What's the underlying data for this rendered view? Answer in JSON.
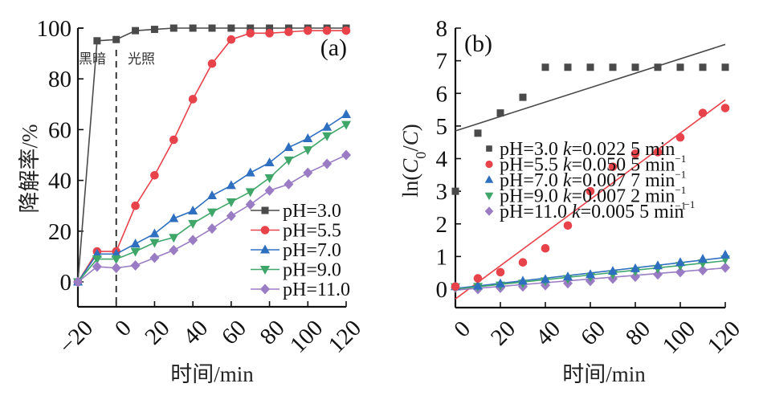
{
  "chart_data": [
    {
      "type": "line",
      "panel_label": "(a)",
      "title": "",
      "xlabel": "时间/min",
      "ylabel": "降解率/%",
      "xlim": [
        -20,
        120
      ],
      "ylim": [
        -7,
        100
      ],
      "x_ticks": [
        "-20",
        "0",
        "20",
        "40",
        "60",
        "80",
        "100",
        "120"
      ],
      "y_ticks": [
        "0",
        "20",
        "40",
        "60",
        "80",
        "100"
      ],
      "grid": false,
      "legend_position": "bottom-right",
      "annotations": [
        {
          "text": "黑暗",
          "region": "dark"
        },
        {
          "text": "光照",
          "region": "light"
        }
      ],
      "divider_x": 0,
      "x": [
        -20,
        -10,
        0,
        10,
        20,
        30,
        40,
        50,
        60,
        70,
        80,
        90,
        100,
        110,
        120
      ],
      "series": [
        {
          "name": "pH=3.0",
          "marker": "square",
          "color": "#4a4a4a",
          "values": [
            0,
            95,
            95.5,
            99,
            99.5,
            100,
            100,
            100,
            100,
            100,
            100,
            100,
            100,
            100,
            100
          ]
        },
        {
          "name": "pH=5.5",
          "marker": "circle",
          "color": "#e8424a",
          "values": [
            0,
            12,
            12,
            30,
            42,
            56,
            72,
            86,
            95.5,
            98,
            98,
            98.5,
            99,
            99,
            99
          ]
        },
        {
          "name": "pH=7.0",
          "marker": "triangle-up",
          "color": "#2f6fbf",
          "values": [
            0,
            11,
            11,
            15,
            19,
            25,
            28,
            34,
            38,
            43,
            47,
            53,
            56.5,
            61,
            66
          ]
        },
        {
          "name": "pH=9.0",
          "marker": "triangle-down",
          "color": "#3fa66a",
          "values": [
            0,
            9,
            9,
            12,
            15.5,
            17.5,
            23,
            27.5,
            31.5,
            35.5,
            41,
            48,
            52,
            57.5,
            62
          ]
        },
        {
          "name": "pH=11.0",
          "marker": "diamond",
          "color": "#9a7cc4",
          "values": [
            0,
            6,
            5.5,
            6.5,
            9.5,
            12.5,
            16.5,
            21,
            26,
            30.5,
            36,
            38.5,
            43,
            46.5,
            50
          ]
        }
      ]
    },
    {
      "type": "scatter",
      "panel_label": "(b)",
      "title": "",
      "xlabel": "时间/min",
      "ylabel": "ln(C0/C)",
      "ylabel_parts": {
        "prefix": "ln(",
        "c0": "C",
        "sub": "0",
        "slash": "/",
        "c": "C",
        "suffix": ")"
      },
      "xlim": [
        0,
        120
      ],
      "ylim": [
        -0.6,
        8
      ],
      "x_ticks": [
        "0",
        "20",
        "40",
        "60",
        "80",
        "100",
        "120"
      ],
      "y_ticks": [
        "0",
        "1",
        "2",
        "3",
        "4",
        "5",
        "6",
        "7",
        "8"
      ],
      "grid": false,
      "legend_position": "center",
      "x": [
        0,
        10,
        20,
        30,
        40,
        50,
        60,
        70,
        80,
        90,
        100,
        110,
        120
      ],
      "series": [
        {
          "name": "pH=3.0",
          "k": "0.022 5",
          "unit": "min",
          "unit_exp": "−1",
          "marker": "square",
          "color": "#4a4a4a",
          "values": [
            3.0,
            4.78,
            5.4,
            5.88,
            6.8,
            6.8,
            6.8,
            6.8,
            6.8,
            6.8,
            6.8,
            6.8,
            6.8
          ],
          "fit": [
            4.85,
            7.5
          ]
        },
        {
          "name": "pH=5.5",
          "k": "0.050 5",
          "unit": "min",
          "unit_exp": "−1",
          "marker": "circle",
          "color": "#e8424a",
          "values": [
            0.08,
            0.33,
            0.52,
            0.82,
            1.25,
            1.95,
            3.0,
            3.75,
            4.15,
            4.2,
            4.65,
            5.4,
            5.55
          ],
          "fit": [
            -0.3,
            5.8
          ]
        },
        {
          "name": "pH=7.0",
          "k": "0.007 7",
          "unit": "min",
          "unit_exp": "−1",
          "marker": "triangle-up",
          "color": "#2f6fbf",
          "values": [
            0.08,
            0.1,
            0.17,
            0.25,
            0.3,
            0.38,
            0.45,
            0.55,
            0.63,
            0.72,
            0.82,
            0.92,
            1.05
          ],
          "fit": [
            0.02,
            0.97
          ]
        },
        {
          "name": "pH=9.0",
          "k": "0.007 2",
          "unit": "min",
          "unit_exp": "−1",
          "marker": "triangle-down",
          "color": "#3fa66a",
          "values": [
            0.07,
            0.08,
            0.12,
            0.18,
            0.25,
            0.32,
            0.38,
            0.46,
            0.55,
            0.63,
            0.72,
            0.8,
            0.92
          ],
          "fit": [
            0.0,
            0.87
          ]
        },
        {
          "name": "pH=11.0",
          "k": "0.005 5",
          "unit": "min",
          "unit_exp": "−1",
          "marker": "diamond",
          "color": "#9a7cc4",
          "values": [
            0.05,
            0.0,
            0.04,
            0.08,
            0.12,
            0.18,
            0.25,
            0.32,
            0.38,
            0.45,
            0.52,
            0.58,
            0.66
          ],
          "fit": [
            -0.03,
            0.65
          ]
        }
      ]
    }
  ]
}
